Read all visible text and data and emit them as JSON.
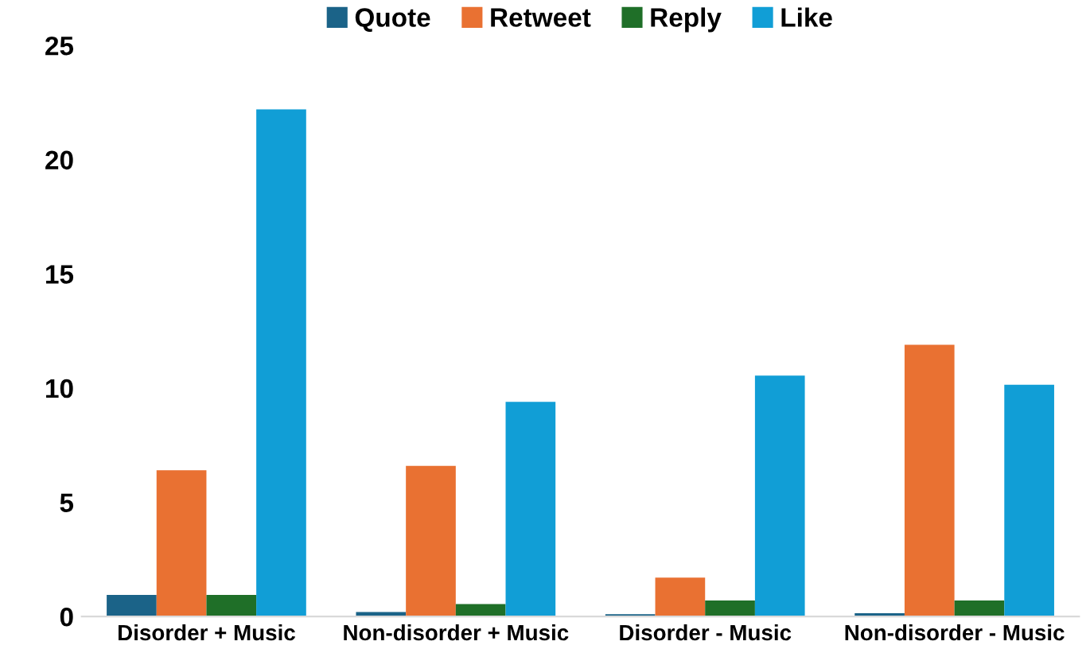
{
  "chart_data": {
    "type": "bar",
    "categories": [
      "Disorder + Music",
      "Non-disorder + Music",
      "Disorder - Music",
      "Non-disorder - Music"
    ],
    "series": [
      {
        "name": "Quote",
        "color": "#1b6388",
        "values": [
          0.95,
          0.2,
          0.1,
          0.15
        ]
      },
      {
        "name": "Retweet",
        "color": "#e97132",
        "values": [
          6.4,
          6.6,
          1.7,
          11.9
        ]
      },
      {
        "name": "Reply",
        "color": "#1f6f28",
        "values": [
          0.95,
          0.55,
          0.7,
          0.7
        ]
      },
      {
        "name": "Like",
        "color": "#119ed6",
        "values": [
          22.2,
          9.4,
          10.55,
          10.15
        ]
      }
    ],
    "ylim": [
      0,
      25
    ],
    "yticks": [
      0,
      5,
      10,
      15,
      20,
      25
    ],
    "grid": false,
    "legend": "top"
  }
}
